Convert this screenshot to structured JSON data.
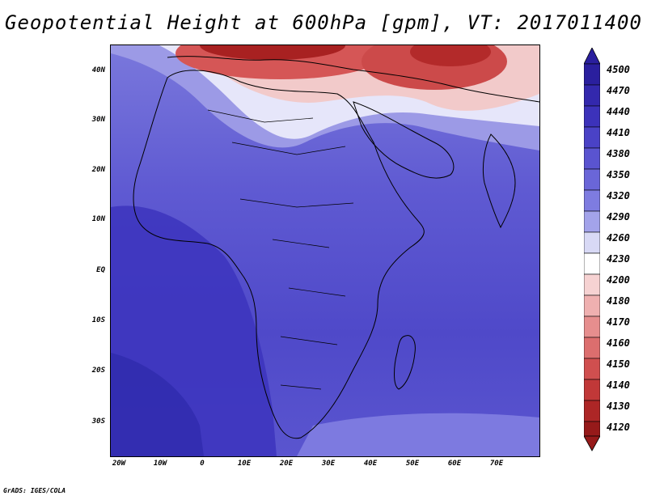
{
  "title": "Geopotential Height at 600hPa [gpm], VT: 2017011400",
  "credit": "GrADS: IGES/COLA",
  "map": {
    "lat_labels": [
      "40N",
      "30N",
      "20N",
      "10N",
      "EQ",
      "10S",
      "20S",
      "30S"
    ],
    "lon_labels": [
      "20W",
      "10W",
      "0",
      "10E",
      "20E",
      "30E",
      "40E",
      "50E",
      "60E",
      "70E"
    ],
    "lat_range": [
      -37,
      45
    ],
    "lon_range": [
      -22,
      80
    ]
  },
  "colorbar": {
    "levels": [
      "4500",
      "4470",
      "4440",
      "4410",
      "4380",
      "4350",
      "4320",
      "4290",
      "4260",
      "4230",
      "4200",
      "4180",
      "4170",
      "4160",
      "4150",
      "4140",
      "4130",
      "4120"
    ],
    "colors": [
      "#2a1f9e",
      "#3328ad",
      "#3c32ba",
      "#4a42c6",
      "#5a54d0",
      "#6a66d8",
      "#7e7ce0",
      "#a3a3ea",
      "#d8d9f5",
      "#ffffff",
      "#f6d2d2",
      "#efb0b0",
      "#e68e8e",
      "#dc6e6e",
      "#d04f4f",
      "#c13838",
      "#ad2626",
      "#961a1a"
    ]
  }
}
